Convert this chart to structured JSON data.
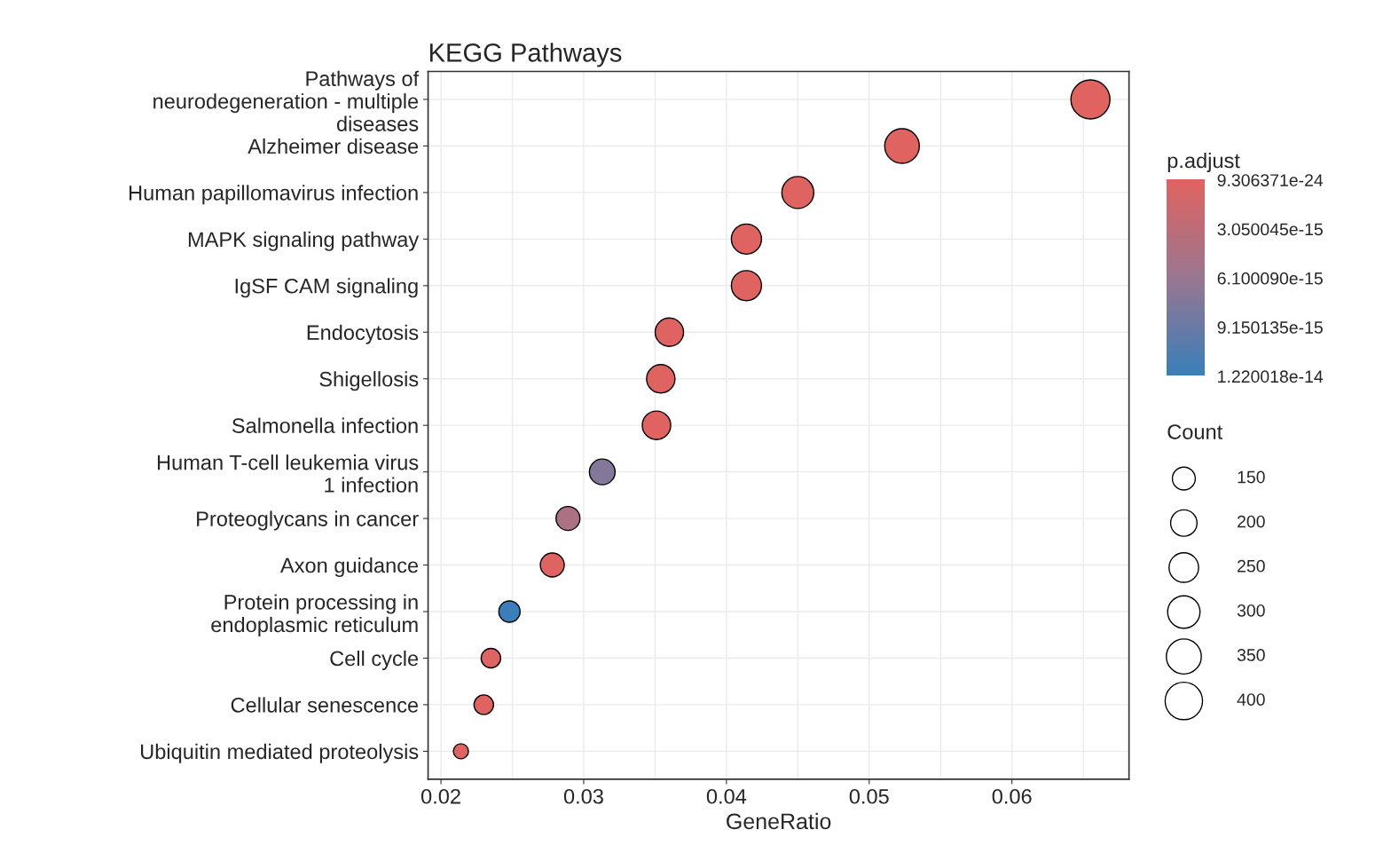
{
  "chart_data": {
    "type": "bubble",
    "orientation": "horizontal",
    "title": "KEGG Pathways",
    "xlabel": "GeneRatio",
    "clabel": "p.adjust",
    "legend_title": "Count",
    "categories": [
      "Pathways of\nneurodegeneration - multiple\ndiseases",
      "Alzheimer disease",
      "Human papillomavirus infection",
      "MAPK signaling pathway",
      "IgSF CAM signaling",
      "Endocytosis",
      "Shigellosis",
      "Salmonella infection",
      "Human T-cell leukemia virus\n1 infection",
      "Proteoglycans in cancer",
      "Axon guidance",
      "Protein processing in\nendoplasmic reticulum",
      "Cell cycle",
      "Cellular senescence",
      "Ubiquitin mediated proteolysis"
    ],
    "values": [
      0.0655,
      0.0523,
      0.045,
      0.0414,
      0.0414,
      0.036,
      0.0354,
      0.0351,
      0.0313,
      0.0289,
      0.0278,
      0.0248,
      0.0235,
      0.023,
      0.0214
    ],
    "sizes": [
      436,
      343,
      292,
      260,
      260,
      231,
      231,
      231,
      189,
      164,
      164,
      130,
      109,
      109,
      65
    ],
    "size_legend": [
      150,
      200,
      250,
      300,
      350,
      400
    ],
    "cvalues": [
      9.306371e-24,
      1e-16,
      1e-16,
      1e-16,
      1e-16,
      1e-16,
      1e-16,
      1e-16,
      7.5e-15,
      4.5e-15,
      1e-16,
      1.220018e-14,
      1e-16,
      1e-16,
      1e-16
    ],
    "clim": [
      1.220018e-14,
      9.306371e-24
    ],
    "cticks": [
      {
        "value": 9.306371e-24,
        "label": "9.306371e-24"
      },
      {
        "value": 3.050045e-15,
        "label": "3.050045e-15"
      },
      {
        "value": 6.10009e-15,
        "label": "6.100090e-15"
      },
      {
        "value": 9.150135e-15,
        "label": "9.150135e-15"
      },
      {
        "value": 1.220018e-14,
        "label": "1.220018e-14"
      }
    ],
    "xlim": [
      0.0191,
      0.0682
    ],
    "xticks": [
      0.02,
      0.03,
      0.04,
      0.05,
      0.06
    ],
    "grid": true
  }
}
